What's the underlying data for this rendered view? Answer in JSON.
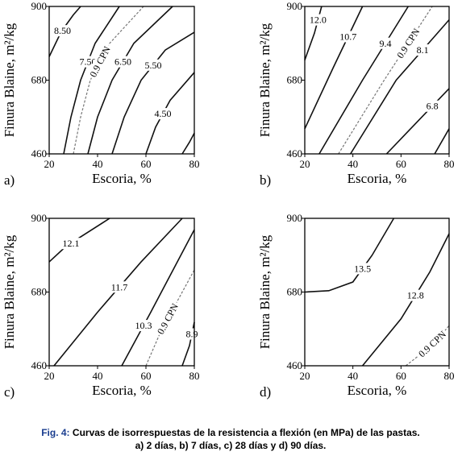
{
  "chart_data": [
    {
      "type": "contour",
      "panel_label": "a)",
      "xlabel": "Escoria, %",
      "ylabel": "Finura Blaine, m²/kg",
      "xlim": [
        20,
        80
      ],
      "ylim": [
        460,
        900
      ],
      "xticks": [
        20,
        40,
        60,
        80
      ],
      "yticks": [
        460,
        680,
        900
      ],
      "contours": [
        {
          "level": {
            "value": 8.5,
            "label": "8.50"
          },
          "x": [
            20,
            22,
            24,
            27,
            30,
            33
          ],
          "y": [
            750,
            780,
            810,
            845,
            875,
            900
          ]
        },
        {
          "level": {
            "value": 7.5,
            "label": "7.50"
          },
          "x": [
            26,
            29,
            33,
            39,
            49
          ],
          "y": [
            460,
            570,
            680,
            790,
            900
          ]
        },
        {
          "name": "0.9 CPN",
          "dashed": true,
          "x": [
            30,
            33,
            37,
            45,
            59
          ],
          "y": [
            460,
            570,
            680,
            790,
            900
          ]
        },
        {
          "level": {
            "value": 6.5,
            "label": "6.50"
          },
          "x": [
            36,
            40,
            46,
            55,
            71
          ],
          "y": [
            460,
            570,
            680,
            790,
            900
          ]
        },
        {
          "level": {
            "value": 5.5,
            "label": "5.50"
          },
          "x": [
            46,
            51,
            58,
            68,
            80
          ],
          "y": [
            460,
            570,
            680,
            770,
            823
          ]
        },
        {
          "level": {
            "value": 4.5,
            "label": "4.50"
          },
          "x": [
            60,
            64,
            70,
            80
          ],
          "y": [
            460,
            540,
            620,
            703
          ]
        },
        {
          "x": [
            75,
            78,
            80
          ],
          "y": [
            460,
            495,
            522
          ]
        }
      ]
    },
    {
      "type": "contour",
      "panel_label": "b)",
      "xlabel": "Escoria, %",
      "ylabel": "Finura Blaine, m²/kg",
      "xlim": [
        20,
        80
      ],
      "ylim": [
        460,
        900
      ],
      "xticks": [
        20,
        40,
        60,
        80
      ],
      "yticks": [
        460,
        680,
        900
      ],
      "contours": [
        {
          "level": {
            "value": 12,
            "label": "12.0"
          },
          "x": [
            20,
            24,
            27
          ],
          "y": [
            740,
            820,
            900
          ]
        },
        {
          "level": 10.7,
          "x": [
            20,
            32,
            44
          ],
          "y": [
            535,
            720,
            900
          ]
        },
        {
          "level": 9.4,
          "x": [
            26,
            44,
            63
          ],
          "y": [
            460,
            680,
            900
          ]
        },
        {
          "name": "0.9 CPN",
          "dashed": true,
          "x": [
            34,
            53,
            73
          ],
          "y": [
            460,
            680,
            900
          ]
        },
        {
          "level": 8.1,
          "x": [
            39,
            58,
            80
          ],
          "y": [
            460,
            680,
            860
          ]
        },
        {
          "level": 6.8,
          "x": [
            54,
            66,
            80
          ],
          "y": [
            460,
            550,
            655
          ]
        },
        {
          "x": [
            74,
            80
          ],
          "y": [
            460,
            535
          ]
        }
      ]
    },
    {
      "type": "contour",
      "panel_label": "c)",
      "xlabel": "Escoria, %",
      "ylabel": "Finura Blaine, m²/kg",
      "xlim": [
        20,
        80
      ],
      "ylim": [
        460,
        900
      ],
      "xticks": [
        20,
        40,
        60,
        80
      ],
      "yticks": [
        460,
        680,
        900
      ],
      "contours": [
        {
          "level": 12.1,
          "x": [
            20,
            26,
            32,
            45
          ],
          "y": [
            770,
            810,
            840,
            900
          ]
        },
        {
          "level": 11.7,
          "x": [
            22,
            40,
            58,
            75
          ],
          "y": [
            460,
            620,
            770,
            900
          ]
        },
        {
          "level": 10.3,
          "x": [
            50,
            56,
            62,
            80
          ],
          "y": [
            460,
            540,
            620,
            866
          ]
        },
        {
          "name": "0.9 CPN",
          "dashed": true,
          "x": [
            60,
            66,
            72,
            80
          ],
          "y": [
            460,
            560,
            640,
            746
          ]
        },
        {
          "level": 8.9,
          "x": [
            75,
            78,
            80
          ],
          "y": [
            460,
            520,
            590
          ]
        }
      ]
    },
    {
      "type": "contour",
      "panel_label": "d)",
      "xlabel": "Escoria, %",
      "ylabel": "Finura Blaine, m²/kg",
      "xlim": [
        20,
        80
      ],
      "ylim": [
        460,
        900
      ],
      "xticks": [
        20,
        40,
        60,
        80
      ],
      "yticks": [
        460,
        680,
        900
      ],
      "contours": [
        {
          "level": 13.5,
          "x": [
            20,
            30,
            40,
            48,
            57
          ],
          "y": [
            680,
            684,
            710,
            790,
            900
          ]
        },
        {
          "level": 12.8,
          "x": [
            44,
            60,
            72,
            80
          ],
          "y": [
            460,
            600,
            740,
            854
          ]
        },
        {
          "name": "0.9 CPN",
          "dashed": true,
          "x": [
            62,
            70,
            76,
            80
          ],
          "y": [
            460,
            505,
            545,
            580
          ]
        }
      ]
    }
  ],
  "caption": {
    "label": "Fig. 4:",
    "lines": [
      "Curvas de isorrespuestas de la resistencia a flexión (en MPa) de las pastas.",
      "a) 2 días, b) 7 días, c) 28 días y d) 90 días."
    ]
  }
}
